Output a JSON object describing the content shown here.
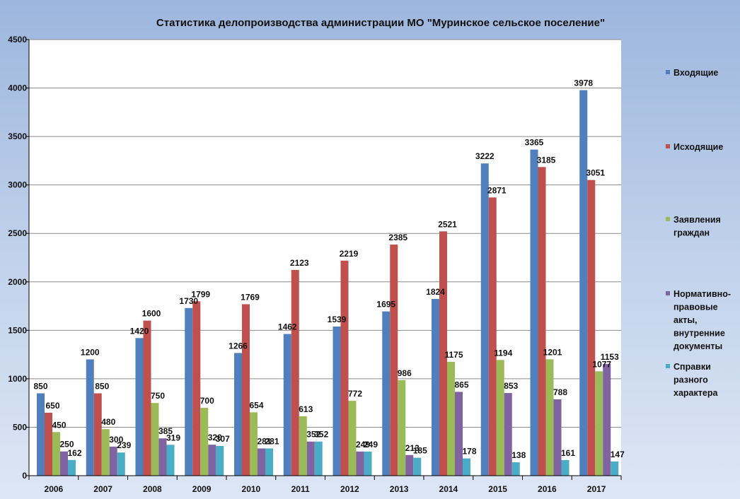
{
  "chart_data": {
    "type": "bar",
    "title": "Статистика делопроизводства администрации МО \"Муринское сельское поселение\"",
    "xlabel": "",
    "ylabel": "",
    "ylim": [
      0,
      4500
    ],
    "yticks": [
      0,
      500,
      1000,
      1500,
      2000,
      2500,
      3000,
      3500,
      4000,
      4500
    ],
    "grid": true,
    "legend_position": "right",
    "categories": [
      "2006",
      "2007",
      "2008",
      "2009",
      "2010",
      "2011",
      "2012",
      "2013",
      "2014",
      "2015",
      "2016",
      "2017"
    ],
    "series": [
      {
        "name": "Входящие",
        "color": "#4f7fbd",
        "values": [
          850,
          1200,
          1420,
          1730,
          1266,
          1462,
          1539,
          1695,
          1824,
          3222,
          3365,
          3978
        ]
      },
      {
        "name": "Исходящие",
        "color": "#c0504d",
        "values": [
          650,
          850,
          1600,
          1799,
          1769,
          2123,
          2219,
          2385,
          2521,
          2871,
          3185,
          3051
        ]
      },
      {
        "name": "Заявления граждан",
        "color": "#9bbb59",
        "values": [
          450,
          480,
          750,
          700,
          654,
          613,
          772,
          986,
          1175,
          1194,
          1201,
          1077
        ]
      },
      {
        "name": "Нормативно-правовые акты, внутренние документы",
        "color": "#8064a2",
        "values": [
          250,
          300,
          385,
          320,
          281,
          352,
          249,
          213,
          865,
          853,
          788,
          1153
        ]
      },
      {
        "name": "Справки разного характера",
        "color": "#4bacc6",
        "values": [
          162,
          239,
          319,
          307,
          281,
          352,
          249,
          185,
          178,
          138,
          161,
          147
        ]
      }
    ],
    "legend_lines": [
      [
        "Входящие"
      ],
      [
        "Исходящие"
      ],
      [
        "Заявления",
        "граждан"
      ],
      [
        "Нормативно-",
        "правовые",
        "акты,",
        "внутренние",
        "документы"
      ],
      [
        "Справки",
        "разного",
        "характера"
      ]
    ]
  }
}
